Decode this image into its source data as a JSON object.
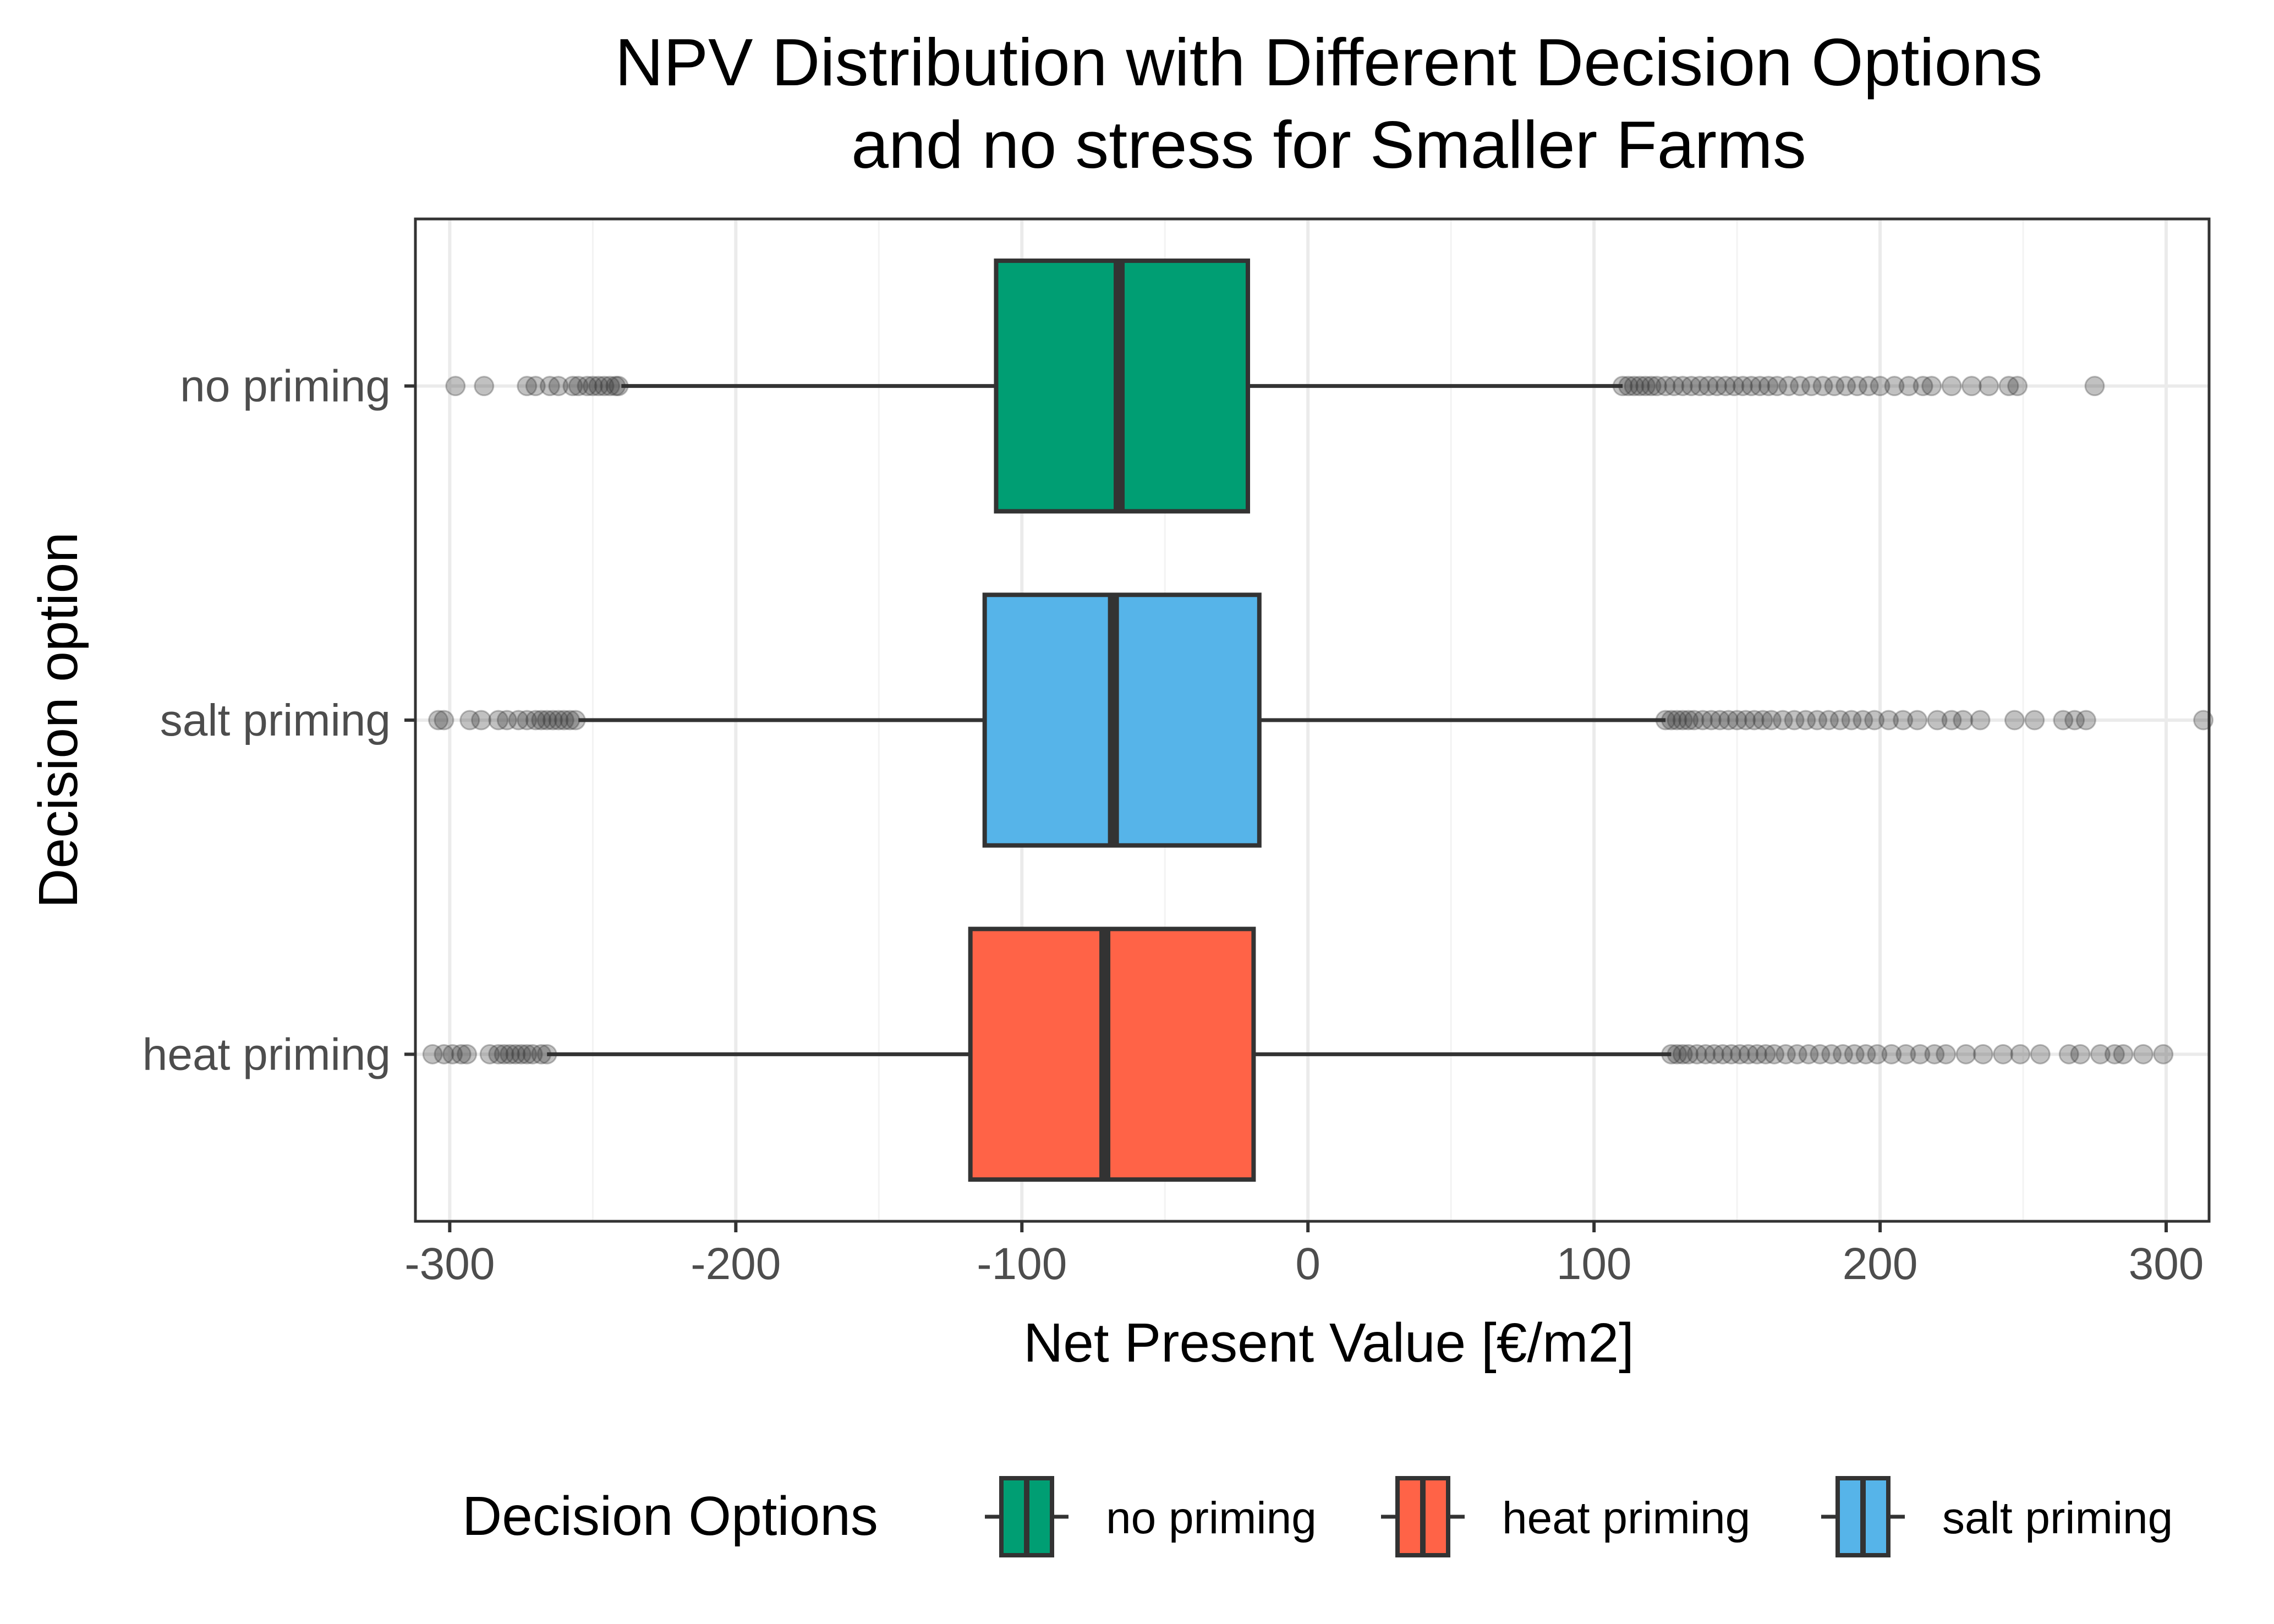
{
  "chart_data": {
    "type": "boxplot",
    "orientation": "horizontal",
    "title": "NPV Distribution with Different Decision Options\nand no stress for Smaller Farms",
    "title_lines": [
      "NPV Distribution with Different Decision Options",
      "and no stress for Smaller Farms"
    ],
    "xlabel": "Net Present Value [€/m2]",
    "ylabel": "Decision option",
    "xlim": [
      -312,
      315
    ],
    "x_ticks": [
      -300,
      -200,
      -100,
      0,
      100,
      200,
      300
    ],
    "x_tick_labels": [
      "-300",
      "-200",
      "-100",
      "0",
      "100",
      "200",
      "300"
    ],
    "grid": true,
    "legend": {
      "title": "Decision Options",
      "position": "bottom",
      "entries": [
        {
          "label": "no priming",
          "color": "#009E73"
        },
        {
          "label": "heat priming",
          "color": "#FF6347"
        },
        {
          "label": "salt priming",
          "color": "#56B4E9"
        }
      ]
    },
    "series": [
      {
        "name": "no priming",
        "color": "#009E73",
        "whisker_low": -240,
        "q1": -109,
        "median": -66,
        "q3": -21,
        "whisker_high": 110,
        "outliers": [
          -298,
          -288,
          -273,
          -270,
          -265,
          -262,
          -257,
          -255,
          -252,
          -250,
          -248,
          -246,
          -244,
          -242,
          -241,
          110,
          112,
          114,
          116,
          118,
          120,
          122,
          125,
          128,
          131,
          134,
          137,
          140,
          143,
          146,
          149,
          152,
          155,
          158,
          161,
          164,
          168,
          172,
          176,
          180,
          184,
          188,
          192,
          196,
          200,
          205,
          210,
          215,
          218,
          225,
          232,
          238,
          245,
          248,
          275
        ]
      },
      {
        "name": "salt priming",
        "color": "#56B4E9",
        "whisker_low": -255,
        "q1": -113,
        "median": -68,
        "q3": -17,
        "whisker_high": 125,
        "outliers": [
          -304,
          -302,
          -293,
          -289,
          -283,
          -280,
          -276,
          -273,
          -270,
          -268,
          -266,
          -264,
          -262,
          -260,
          -258,
          -256,
          125,
          127,
          129,
          131,
          133,
          135,
          138,
          141,
          144,
          147,
          150,
          153,
          156,
          159,
          162,
          166,
          170,
          174,
          178,
          182,
          186,
          190,
          194,
          198,
          203,
          208,
          213,
          220,
          225,
          229,
          235,
          247,
          254,
          264,
          268,
          272,
          313
        ]
      },
      {
        "name": "heat priming",
        "color": "#FF6347",
        "whisker_low": -266,
        "q1": -118,
        "median": -71,
        "q3": -19,
        "whisker_high": 127,
        "outliers": [
          -306,
          -302,
          -299,
          -296,
          -294,
          -286,
          -283,
          -281,
          -279,
          -277,
          -275,
          -273,
          -271,
          -268,
          -266,
          127,
          129,
          131,
          133,
          136,
          139,
          142,
          145,
          148,
          151,
          154,
          157,
          160,
          163,
          167,
          171,
          175,
          179,
          183,
          187,
          191,
          195,
          199,
          204,
          209,
          214,
          219,
          223,
          230,
          236,
          243,
          249,
          256,
          266,
          270,
          277,
          282,
          285,
          292,
          299
        ]
      }
    ],
    "category_order_top_to_bottom": [
      "no priming",
      "salt priming",
      "heat priming"
    ]
  }
}
